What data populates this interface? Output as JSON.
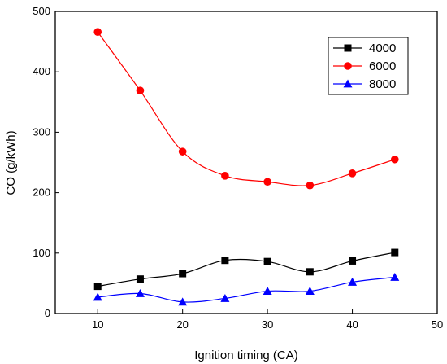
{
  "chart_data": {
    "type": "line",
    "title": "",
    "xlabel": "Ignition timing (CA)",
    "ylabel": "CO (g/kWh)",
    "xlim": [
      5,
      50
    ],
    "ylim": [
      0,
      500
    ],
    "xticks": [
      10,
      20,
      30,
      40,
      50
    ],
    "yticks": [
      0,
      100,
      200,
      300,
      400,
      500
    ],
    "legend_position": "top-right",
    "x": [
      10,
      15,
      20,
      25,
      30,
      35,
      40,
      45
    ],
    "series": [
      {
        "name": "4000",
        "marker": "square",
        "color": "#000000",
        "values": [
          45,
          57,
          66,
          88,
          86,
          69,
          87,
          101
        ]
      },
      {
        "name": "6000",
        "marker": "circle",
        "color": "#ff0000",
        "values": [
          466,
          369,
          268,
          228,
          218,
          212,
          232,
          255
        ]
      },
      {
        "name": "8000",
        "marker": "triangle",
        "color": "#0000ff",
        "values": [
          27,
          33,
          19,
          25,
          37,
          37,
          52,
          60
        ]
      }
    ]
  }
}
